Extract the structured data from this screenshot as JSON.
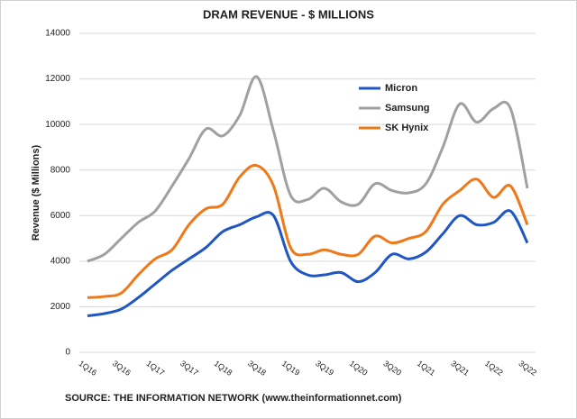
{
  "chart_data": {
    "type": "line",
    "title": "DRAM REVENUE - $ MILLIONS",
    "y_label": "Revenue ($ Millions)",
    "source": "SOURCE: THE INFORMATION NETWORK (www.theinformationnet.com)",
    "categories": [
      "1Q16",
      null,
      "3Q16",
      null,
      "1Q17",
      null,
      "3Q17",
      null,
      "1Q18",
      null,
      "3Q18",
      null,
      "1Q19",
      null,
      "3Q19",
      null,
      "1Q20",
      null,
      "3Q20",
      null,
      "1Q21",
      null,
      "3Q21",
      null,
      "1Q22",
      null,
      "3Q22"
    ],
    "series": [
      {
        "name": "Micron",
        "color": "#1f56c4",
        "values": [
          1600,
          1700,
          1900,
          2400,
          3000,
          3600,
          4100,
          4600,
          5300,
          5600,
          5950,
          6000,
          4000,
          3400,
          3400,
          3500,
          3100,
          3500,
          4300,
          4100,
          4400,
          5200,
          6000,
          5600,
          5700,
          6200,
          4800
        ]
      },
      {
        "name": "Samsung",
        "color": "#a0a0a0",
        "values": [
          4000,
          4300,
          5000,
          5700,
          6200,
          7300,
          8500,
          9800,
          9500,
          10400,
          12100,
          9700,
          6900,
          6700,
          7200,
          6600,
          6500,
          7400,
          7100,
          7000,
          7400,
          9000,
          10900,
          10100,
          10700,
          10700,
          7200
        ]
      },
      {
        "name": "SK Hynix",
        "color": "#f07818",
        "values": [
          2400,
          2450,
          2600,
          3400,
          4100,
          4500,
          5600,
          6300,
          6500,
          7700,
          8200,
          7300,
          4600,
          4300,
          4500,
          4300,
          4300,
          5100,
          4800,
          5000,
          5300,
          6500,
          7100,
          7600,
          6800,
          7300,
          5600
        ]
      }
    ],
    "ylim": [
      0,
      14000
    ],
    "yticks": [
      0,
      2000,
      4000,
      6000,
      8000,
      10000,
      12000,
      14000
    ],
    "grid": true,
    "legend": "upper right"
  }
}
